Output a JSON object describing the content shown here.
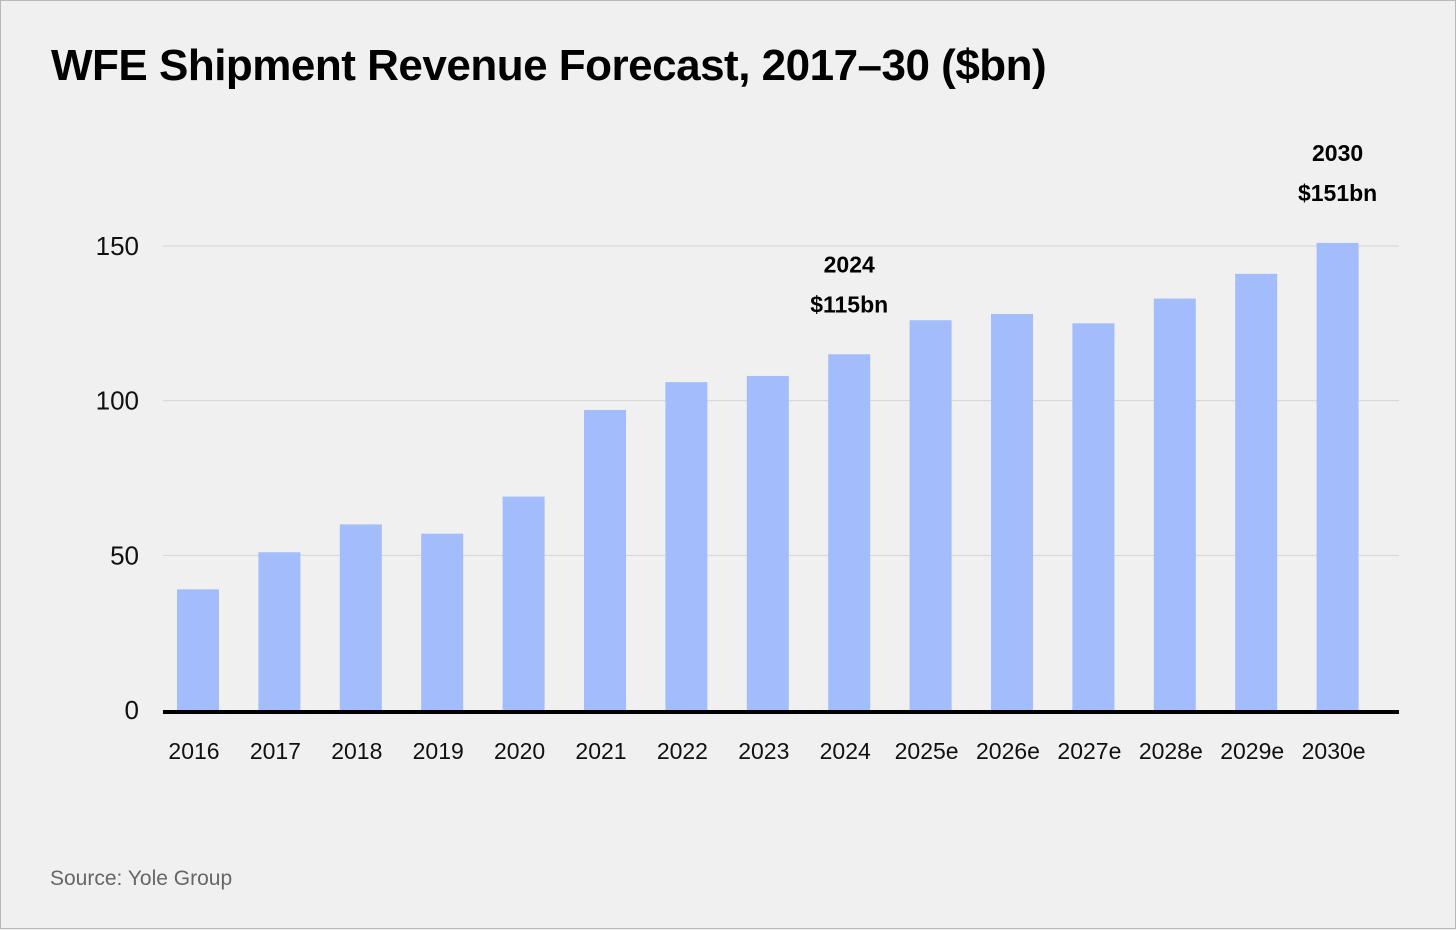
{
  "chart_data": {
    "type": "bar",
    "title": "WFE Shipment Revenue Forecast, 2017–30 ($bn)",
    "xlabel": "",
    "ylabel": "",
    "categories": [
      "2016",
      "2017",
      "2018",
      "2019",
      "2020",
      "2021",
      "2022",
      "2023",
      "2024",
      "2025e",
      "2026e",
      "2027e",
      "2028e",
      "2029e",
      "2030e"
    ],
    "values": [
      39,
      51,
      60,
      57,
      69,
      97,
      106,
      108,
      115,
      126,
      128,
      125,
      133,
      141,
      151
    ],
    "ylim": [
      0,
      150
    ],
    "yticks": [
      0,
      50,
      100,
      150
    ],
    "grid": true,
    "bar_color": "#a3bcfb",
    "annotations": [
      {
        "category": "2024",
        "lines": [
          "2024",
          "$115bn"
        ]
      },
      {
        "category": "2030e",
        "lines": [
          "2030",
          "$151bn"
        ]
      }
    ]
  },
  "source": "Source: Yole Group"
}
